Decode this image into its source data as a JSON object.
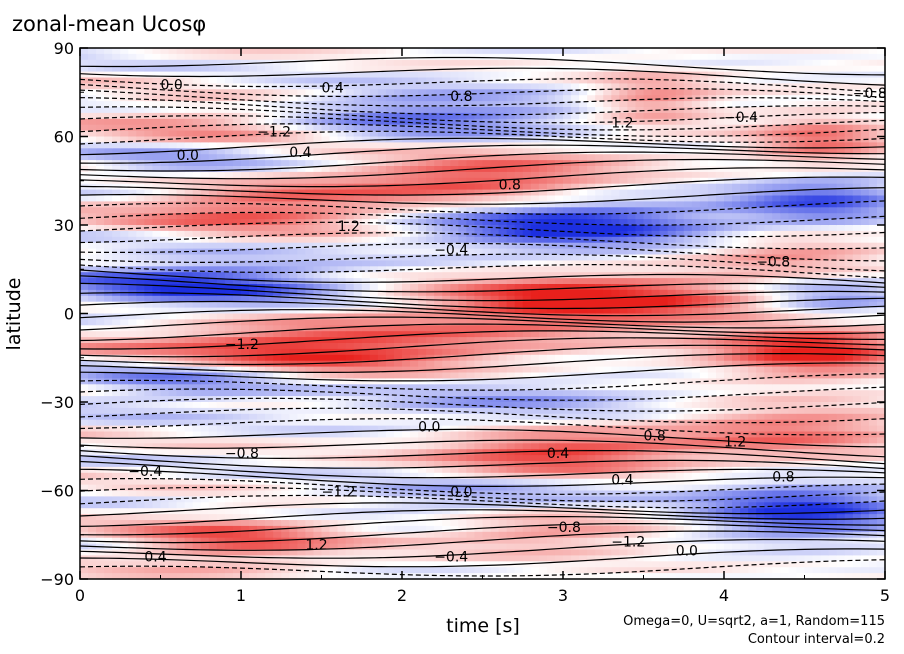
{
  "chart_data": {
    "type": "heatmap",
    "title": "zonal-mean Ucosφ",
    "xlabel": "time [s]",
    "ylabel": "latitude",
    "xlim": [
      0,
      5
    ],
    "ylim": [
      -90,
      90
    ],
    "x_ticks": [
      0,
      1,
      2,
      3,
      4,
      5
    ],
    "x_tick_labels": [
      "0",
      "1",
      "2",
      "3",
      "4",
      "5"
    ],
    "y_ticks": [
      90,
      60,
      30,
      0,
      -30,
      -60,
      -90
    ],
    "y_tick_labels": [
      "90",
      "60",
      "30",
      "0",
      "−30",
      "−60",
      "−90"
    ],
    "contour_interval": 0.2,
    "colors": {
      "positive": "#e8201c",
      "negative": "#1c2fe0",
      "zero": "#ffffff",
      "contour": "#000000"
    },
    "contour_labels": [
      "0.0",
      "0.4",
      "0.8",
      "1.2",
      "−0.4",
      "−0.8",
      "−1.2"
    ],
    "features": [
      {
        "sign": "pos",
        "t": [
          0.2,
          1.5
        ],
        "lat": 63,
        "amp": 0.9
      },
      {
        "sign": "neg",
        "t": [
          1.2,
          3.0
        ],
        "lat": 67,
        "amp": 1.0
      },
      {
        "sign": "pos",
        "t": [
          3.3,
          3.8
        ],
        "lat": 72,
        "amp": 0.8
      },
      {
        "sign": "pos",
        "t": [
          4.3,
          4.9
        ],
        "lat": 58,
        "amp": 0.9
      },
      {
        "sign": "neg",
        "t": [
          0.1,
          1.2
        ],
        "lat": 52,
        "amp": 0.7
      },
      {
        "sign": "pos",
        "t": [
          1.8,
          3.2
        ],
        "lat": 46,
        "amp": 1.2
      },
      {
        "sign": "pos",
        "t": [
          0.4,
          1.8
        ],
        "lat": 36,
        "amp": 1.1
      },
      {
        "sign": "neg",
        "t": [
          2.3,
          3.8
        ],
        "lat": 30,
        "amp": 1.5
      },
      {
        "sign": "neg",
        "t": [
          4.2,
          5.0
        ],
        "lat": 38,
        "amp": 1.1
      },
      {
        "sign": "pos",
        "t": [
          4.0,
          4.9
        ],
        "lat": 20,
        "amp": 0.7
      },
      {
        "sign": "neg",
        "t": [
          0.0,
          1.5
        ],
        "lat": 10,
        "amp": 1.3
      },
      {
        "sign": "pos",
        "t": [
          2.3,
          4.0
        ],
        "lat": 4,
        "amp": 1.6
      },
      {
        "sign": "neg",
        "t": [
          4.3,
          5.0
        ],
        "lat": 5,
        "amp": 0.8
      },
      {
        "sign": "pos",
        "t": [
          0.3,
          2.5
        ],
        "lat": -12,
        "amp": 1.5
      },
      {
        "sign": "pos",
        "t": [
          4.1,
          5.0
        ],
        "lat": -12,
        "amp": 1.5
      },
      {
        "sign": "neg",
        "t": [
          0.0,
          1.2
        ],
        "lat": -22,
        "amp": 0.9
      },
      {
        "sign": "neg",
        "t": [
          1.8,
          3.5
        ],
        "lat": -30,
        "amp": 0.6
      },
      {
        "sign": "pos",
        "t": [
          2.3,
          3.6
        ],
        "lat": -48,
        "amp": 1.3
      },
      {
        "sign": "pos",
        "t": [
          3.8,
          5.0
        ],
        "lat": -40,
        "amp": 0.9
      },
      {
        "sign": "neg",
        "t": [
          1.8,
          3.5
        ],
        "lat": -62,
        "amp": 0.8
      },
      {
        "sign": "neg",
        "t": [
          4.0,
          5.0
        ],
        "lat": -67,
        "amp": 1.4
      },
      {
        "sign": "pos",
        "t": [
          0.4,
          1.5
        ],
        "lat": -77,
        "amp": 1.0
      },
      {
        "sign": "pos",
        "t": [
          2.3,
          3.5
        ],
        "lat": -72,
        "amp": 0.8
      }
    ]
  },
  "notes": {
    "line1": "Omega=0, U=sqrt2, a=1, Random=115",
    "line2": "Contour interval=0.2"
  }
}
